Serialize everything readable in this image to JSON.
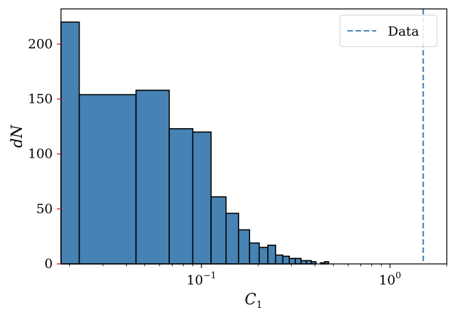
{
  "chart_data": {
    "type": "bar",
    "subtype": "histogram",
    "xscale": "log",
    "xlabel": "C_1",
    "ylabel": "dN",
    "xlim": [
      0.018,
      2.0
    ],
    "ylim": [
      0,
      232
    ],
    "x_ticks": [
      {
        "value": 0.1,
        "base": "10",
        "exp": "−1"
      },
      {
        "value": 1.0,
        "base": "10",
        "exp": "0"
      }
    ],
    "y_ticks": [
      0,
      50,
      100,
      150,
      200
    ],
    "bar_color": "#4682b4",
    "bar_edge_color": "#000000",
    "bins": [
      {
        "x0": 0.018,
        "x1": 0.0225,
        "count": 220
      },
      {
        "x0": 0.0225,
        "x1": 0.045,
        "count": 154
      },
      {
        "x0": 0.045,
        "x1": 0.0675,
        "count": 158
      },
      {
        "x0": 0.0675,
        "x1": 0.09,
        "count": 123
      },
      {
        "x0": 0.09,
        "x1": 0.1125,
        "count": 120
      },
      {
        "x0": 0.1125,
        "x1": 0.135,
        "count": 61
      },
      {
        "x0": 0.135,
        "x1": 0.1575,
        "count": 46
      },
      {
        "x0": 0.1575,
        "x1": 0.18,
        "count": 31
      },
      {
        "x0": 0.18,
        "x1": 0.2025,
        "count": 19
      },
      {
        "x0": 0.2025,
        "x1": 0.225,
        "count": 15
      },
      {
        "x0": 0.225,
        "x1": 0.2475,
        "count": 17
      },
      {
        "x0": 0.2475,
        "x1": 0.27,
        "count": 8
      },
      {
        "x0": 0.27,
        "x1": 0.2925,
        "count": 7
      },
      {
        "x0": 0.2925,
        "x1": 0.315,
        "count": 5
      },
      {
        "x0": 0.315,
        "x1": 0.3375,
        "count": 5
      },
      {
        "x0": 0.3375,
        "x1": 0.36,
        "count": 3
      },
      {
        "x0": 0.36,
        "x1": 0.3825,
        "count": 3
      },
      {
        "x0": 0.3825,
        "x1": 0.405,
        "count": 2
      },
      {
        "x0": 0.405,
        "x1": 0.4275,
        "count": 0
      },
      {
        "x0": 0.4275,
        "x1": 0.45,
        "count": 1
      },
      {
        "x0": 0.45,
        "x1": 0.4725,
        "count": 2
      }
    ],
    "reference_line": {
      "name": "Data",
      "x": 1.5,
      "color": "#4682b4",
      "style": "dashed"
    },
    "legend": {
      "position": "top-right",
      "entries": [
        "Data"
      ]
    }
  }
}
